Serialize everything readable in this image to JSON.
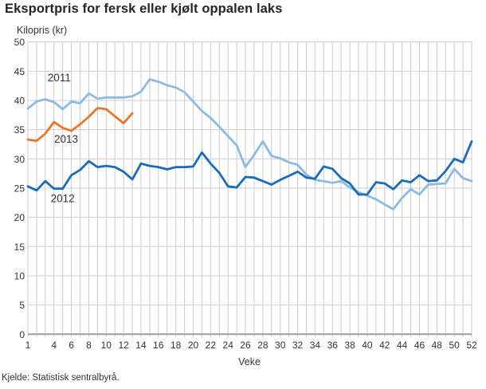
{
  "page": {
    "title": "Eksportpris for fersk eller kjølt oppalen laks",
    "source": "Kjelde: Statistisk sentralbyrå."
  },
  "chart_data": {
    "type": "line",
    "title": "Eksportpris for fersk eller kjølt oppalen laks",
    "ylabel": "Kilopris (kr)",
    "xlabel": "Veke",
    "ylim": [
      0,
      50
    ],
    "ytick_step": 5,
    "x_range": [
      1,
      52
    ],
    "x_tick_labels": [
      1,
      4,
      6,
      8,
      10,
      12,
      14,
      16,
      18,
      20,
      22,
      24,
      26,
      28,
      30,
      32,
      34,
      36,
      38,
      40,
      42,
      44,
      46,
      48,
      50,
      52
    ],
    "grid": true,
    "legend_position": "inline-labels",
    "colors": {
      "grid": "#cdcdcd",
      "zero_axis": "#9e9e9e",
      "text": "#333333",
      "series_2011": "#8dbae3",
      "series_2012": "#1a6cba",
      "series_2013": "#e9752a"
    },
    "series": [
      {
        "name": "2011",
        "color": "#8dbae3",
        "start_week": 1,
        "label_at": {
          "week": 4.6,
          "value": 43.3
        },
        "values": [
          38.6,
          39.8,
          40.2,
          39.7,
          38.5,
          39.8,
          39.5,
          41.2,
          40.3,
          40.5,
          40.5,
          40.5,
          40.7,
          41.5,
          43.6,
          43.2,
          42.6,
          42.2,
          41.4,
          39.8,
          38.2,
          37.0,
          35.5,
          33.9,
          32.3,
          28.6,
          30.7,
          33.0,
          30.5,
          30.1,
          29.4,
          29.0,
          27.3,
          26.4,
          26.2,
          25.9,
          26.2,
          25.1,
          24.3,
          23.7,
          23.1,
          22.2,
          21.4,
          23.3,
          24.8,
          23.9,
          25.6,
          25.7,
          25.8,
          28.3,
          26.7,
          26.2
        ]
      },
      {
        "name": "2013",
        "color": "#e9752a",
        "start_week": 1,
        "label_at": {
          "week": 5.4,
          "value": 32.8
        },
        "values": [
          33.3,
          33.1,
          34.3,
          36.3,
          35.3,
          34.8,
          35.9,
          37.2,
          38.7,
          38.5,
          37.3,
          36.1,
          37.8
        ]
      },
      {
        "name": "2012",
        "color": "#1a6cba",
        "start_week": 1,
        "label_at": {
          "week": 5.0,
          "value": 22.6
        },
        "values": [
          25.3,
          24.6,
          26.2,
          24.9,
          24.9,
          27.2,
          28.1,
          29.6,
          28.6,
          28.8,
          28.6,
          27.8,
          26.5,
          29.2,
          28.8,
          28.6,
          28.2,
          28.6,
          28.6,
          28.7,
          31.1,
          29.2,
          27.6,
          25.3,
          25.1,
          26.9,
          26.8,
          26.2,
          25.6,
          26.4,
          27.1,
          27.8,
          26.8,
          26.6,
          28.7,
          28.3,
          26.7,
          25.8,
          23.9,
          23.9,
          26.0,
          25.8,
          24.8,
          26.3,
          26.0,
          27.2,
          26.2,
          26.3,
          27.9,
          30.0,
          29.4,
          33.0
        ]
      }
    ]
  }
}
